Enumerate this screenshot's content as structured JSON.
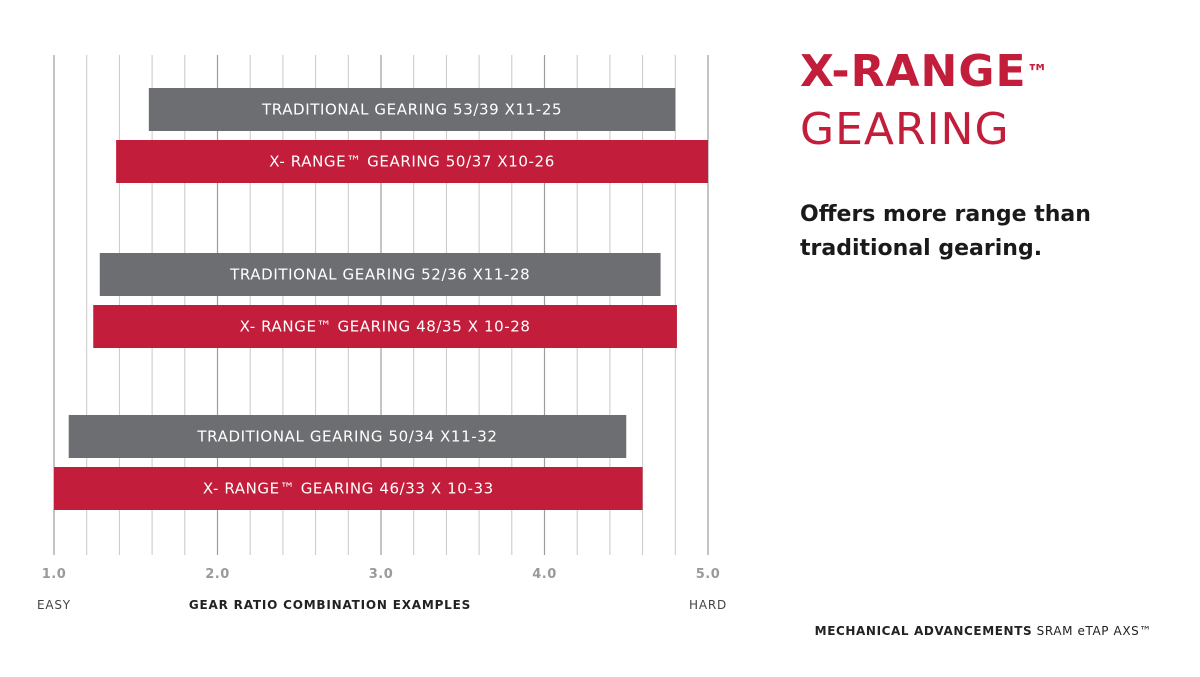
{
  "chart_data": {
    "type": "bar",
    "orientation": "horizontal-range",
    "xlabel": "GEAR RATIO COMBINATION EXAMPLES",
    "xlim": [
      1.0,
      5.0
    ],
    "ticks": [
      "1.0",
      "2.0",
      "3.0",
      "4.0",
      "5.0"
    ],
    "axis_low_label": "EASY",
    "axis_high_label": "HARD",
    "bars": [
      {
        "label": "TRADITIONAL GEARING 53/39 X11-25",
        "start": 1.58,
        "end": 4.8,
        "kind": "traditional"
      },
      {
        "label": "X- RANGE™ GEARING 50/37 X10-26",
        "start": 1.38,
        "end": 5.0,
        "kind": "xrange"
      },
      {
        "label": "TRADITIONAL GEARING 52/36 X11-28",
        "start": 1.28,
        "end": 4.71,
        "kind": "traditional"
      },
      {
        "label": "X- RANGE™ GEARING 48/35 X 10-28",
        "start": 1.24,
        "end": 4.81,
        "kind": "xrange"
      },
      {
        "label": "TRADITIONAL GEARING 50/34 X11-32",
        "start": 1.09,
        "end": 4.5,
        "kind": "traditional"
      },
      {
        "label": "X- RANGE™ GEARING 46/33 X 10-33",
        "start": 1.0,
        "end": 4.6,
        "kind": "xrange"
      }
    ],
    "colors": {
      "traditional": "#6d6e71",
      "xrange": "#c21d3a",
      "grid": "#c8c8c8"
    },
    "grid": true
  },
  "headline": {
    "main": "X-RANGE",
    "mark": "™",
    "sub": "GEARING"
  },
  "tagline": "Offers more range than traditional gearing.",
  "footer": {
    "strong": "MECHANICAL ADVANCEMENTS",
    "rest": "SRAM eTAP AXS™"
  }
}
